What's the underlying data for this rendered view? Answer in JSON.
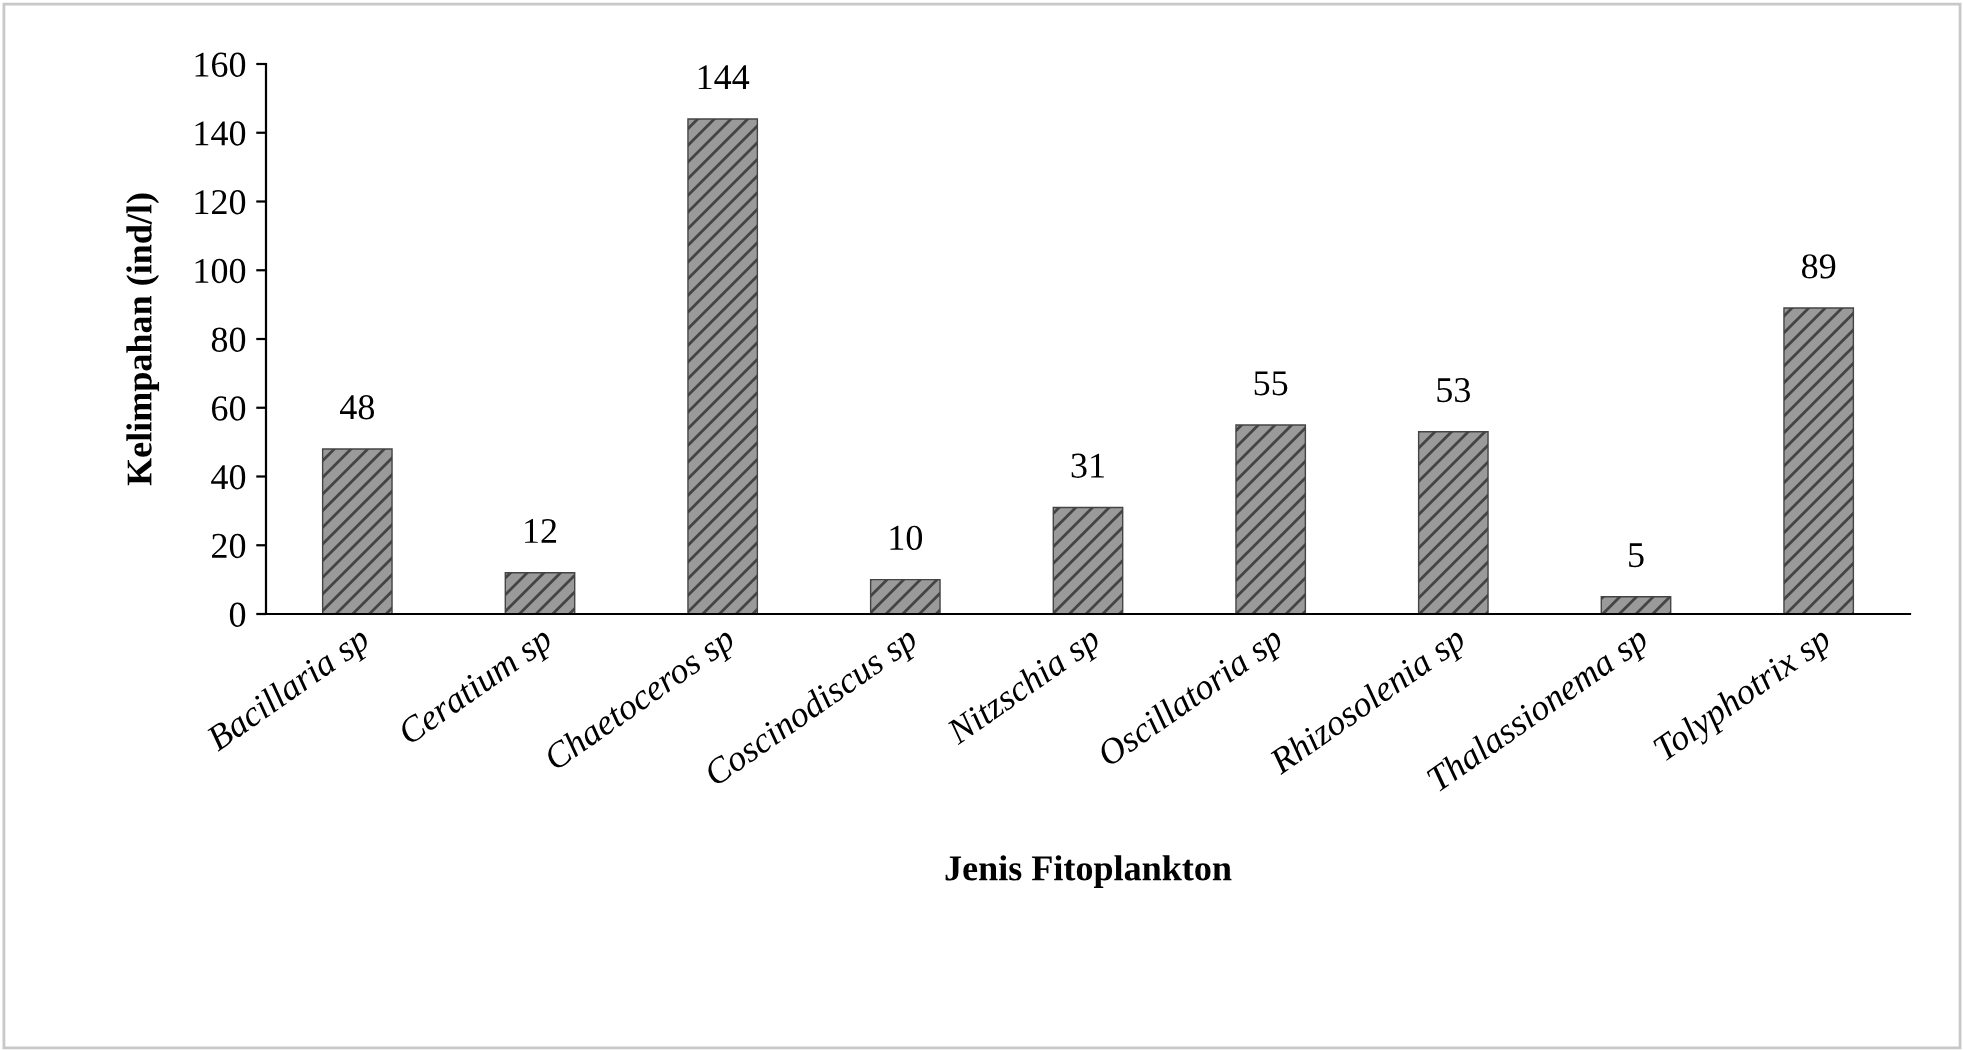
{
  "chart_data": {
    "type": "bar",
    "xlabel": "Jenis Fitoplankton",
    "ylabel": "Kelimpahan (ind/l)",
    "categories": [
      "Bacillaria sp",
      "Ceratium sp",
      "Chaetoceros sp",
      "Coscinodiscus sp",
      "Nitzschia sp",
      "Oscillatoria sp",
      "Rhizosolenia sp",
      "Thalassionema sp",
      "Tolyphotrix sp"
    ],
    "values": [
      48,
      12,
      144,
      10,
      31,
      55,
      53,
      5,
      89
    ],
    "color": "#444444",
    "ylim": [
      0,
      160
    ],
    "yticks": [
      0,
      20,
      40,
      60,
      80,
      100,
      120,
      140,
      160
    ],
    "data_labels": true,
    "grid": false,
    "legend": false
  }
}
